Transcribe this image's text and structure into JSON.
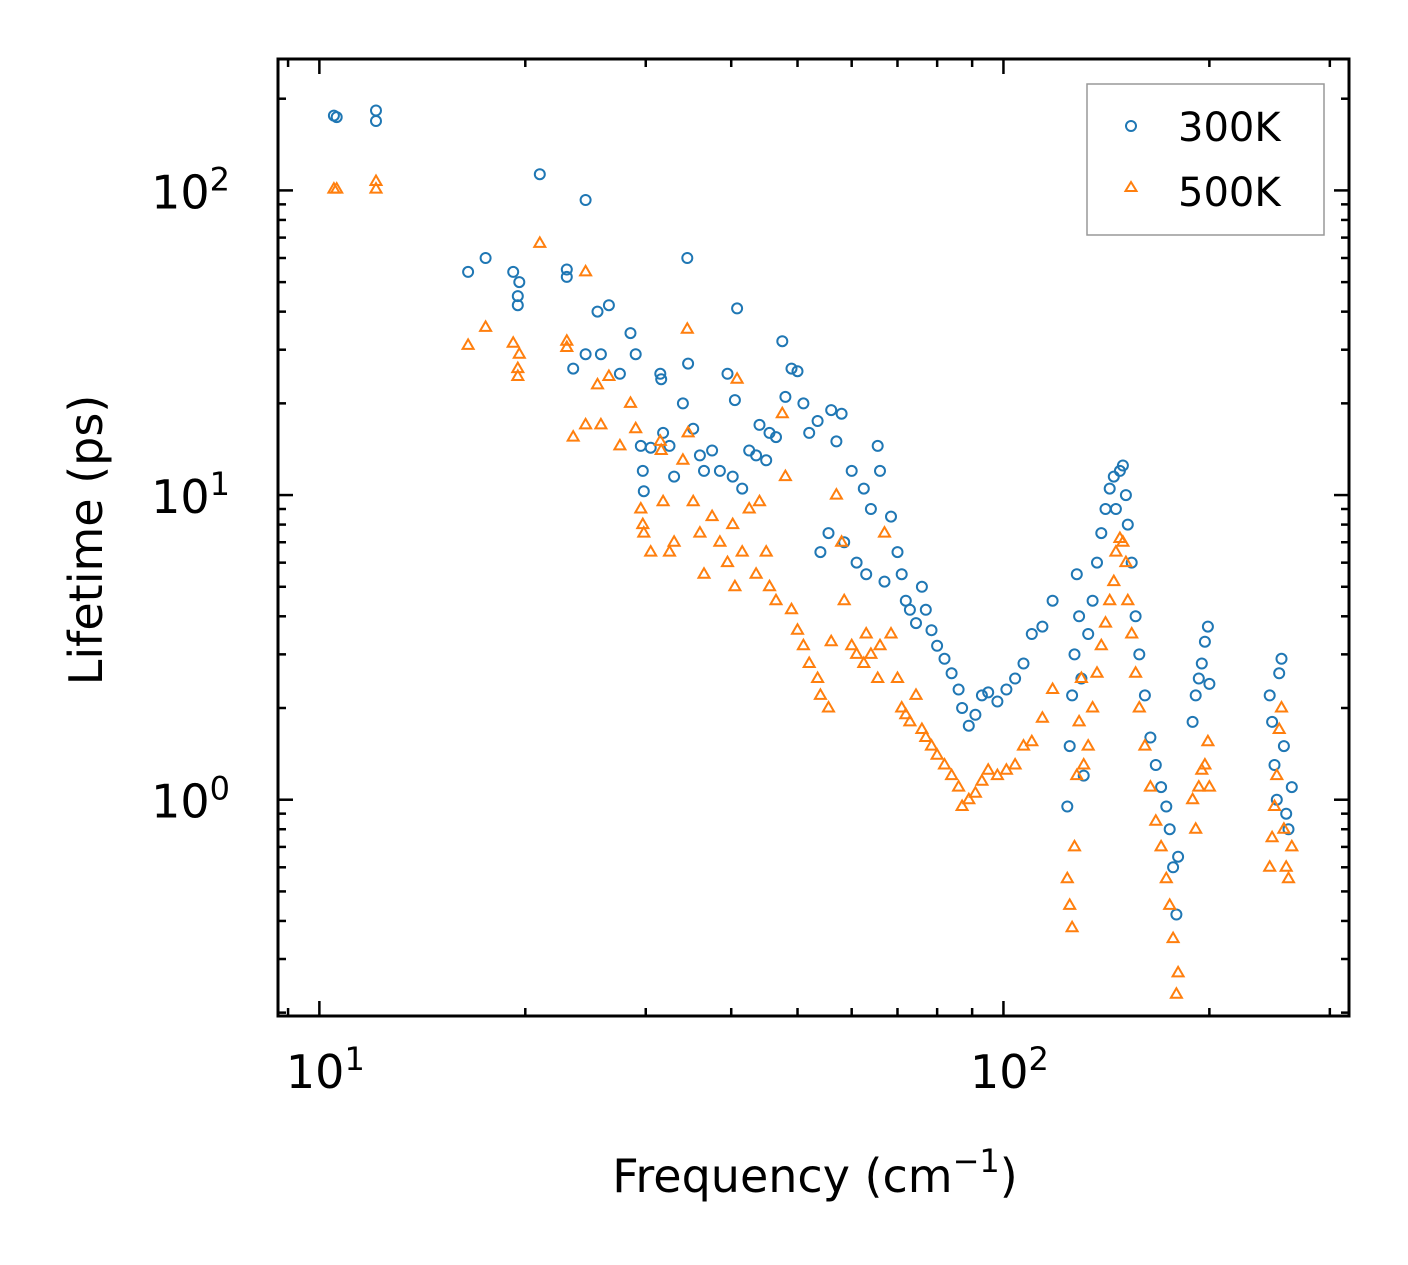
{
  "chart_data": {
    "type": "scatter",
    "xscale": "log",
    "yscale": "log",
    "xlim": [
      8.7,
      320
    ],
    "ylim": [
      0.195,
      270
    ],
    "xlabel": "Frequency (cm",
    "xlabel_sup": "−1",
    "xlabel_end": ")",
    "ylabel": "Lifetime (ps)",
    "xticks": [
      {
        "value": 10,
        "base": "10",
        "exp": "1"
      },
      {
        "value": 100,
        "base": "10",
        "exp": "2"
      }
    ],
    "yticks": [
      {
        "value": 1,
        "base": "10",
        "exp": "0"
      },
      {
        "value": 10,
        "base": "10",
        "exp": "1"
      },
      {
        "value": 100,
        "base": "10",
        "exp": "2"
      }
    ],
    "legend_position": "top-right",
    "series": [
      {
        "name": "300K",
        "marker": "circle",
        "color": "#1f77b4",
        "points": [
          [
            10.5,
            176
          ],
          [
            10.6,
            174
          ],
          [
            12.1,
            183
          ],
          [
            12.1,
            169
          ],
          [
            16.5,
            54
          ],
          [
            17.5,
            60
          ],
          [
            19.2,
            54
          ],
          [
            19.5,
            45
          ],
          [
            19.5,
            42
          ],
          [
            19.6,
            50
          ],
          [
            21.0,
            113
          ],
          [
            23.0,
            55
          ],
          [
            23.0,
            52
          ],
          [
            23.5,
            26
          ],
          [
            24.5,
            93
          ],
          [
            24.5,
            29
          ],
          [
            25.5,
            40
          ],
          [
            25.8,
            29
          ],
          [
            26.5,
            42
          ],
          [
            27.5,
            25
          ],
          [
            28.5,
            34
          ],
          [
            29.0,
            29
          ],
          [
            29.5,
            14.5
          ],
          [
            29.7,
            12
          ],
          [
            29.8,
            10.3
          ],
          [
            30.5,
            14.3
          ],
          [
            31.5,
            25
          ],
          [
            31.6,
            24
          ],
          [
            31.8,
            16
          ],
          [
            32.5,
            14.5
          ],
          [
            33.0,
            11.5
          ],
          [
            34.0,
            20
          ],
          [
            34.5,
            60
          ],
          [
            34.6,
            27
          ],
          [
            35.2,
            16.5
          ],
          [
            36.0,
            13.5
          ],
          [
            36.5,
            12
          ],
          [
            37.5,
            14
          ],
          [
            38.5,
            12
          ],
          [
            39.5,
            25
          ],
          [
            40.2,
            11.5
          ],
          [
            40.5,
            20.5
          ],
          [
            40.8,
            41
          ],
          [
            41.5,
            10.5
          ],
          [
            42.5,
            14
          ],
          [
            43.5,
            13.5
          ],
          [
            44.0,
            17
          ],
          [
            45.0,
            13
          ],
          [
            45.5,
            16
          ],
          [
            46.5,
            15.5
          ],
          [
            47.5,
            32
          ],
          [
            48.0,
            21
          ],
          [
            49.0,
            26
          ],
          [
            50.0,
            25.5
          ],
          [
            51.0,
            20
          ],
          [
            52.0,
            16
          ],
          [
            53.5,
            17.5
          ],
          [
            54.0,
            6.5
          ],
          [
            55.5,
            7.5
          ],
          [
            56.0,
            19
          ],
          [
            57.0,
            15
          ],
          [
            58.0,
            18.5
          ],
          [
            58.5,
            7
          ],
          [
            60.0,
            12
          ],
          [
            61.0,
            6
          ],
          [
            62.5,
            10.5
          ],
          [
            63.0,
            5.5
          ],
          [
            64.0,
            9
          ],
          [
            65.5,
            14.5
          ],
          [
            66.0,
            12
          ],
          [
            67.0,
            5.2
          ],
          [
            68.5,
            8.5
          ],
          [
            70.0,
            6.5
          ],
          [
            71.0,
            5.5
          ],
          [
            72.0,
            4.5
          ],
          [
            73.0,
            4.2
          ],
          [
            74.5,
            3.8
          ],
          [
            76.0,
            5.0
          ],
          [
            77.0,
            4.2
          ],
          [
            78.5,
            3.6
          ],
          [
            80.0,
            3.2
          ],
          [
            82.0,
            2.9
          ],
          [
            84.0,
            2.6
          ],
          [
            86.0,
            2.3
          ],
          [
            87.0,
            2.0
          ],
          [
            89.0,
            1.75
          ],
          [
            91.0,
            1.9
          ],
          [
            93.0,
            2.2
          ],
          [
            95.0,
            2.25
          ],
          [
            98.0,
            2.1
          ],
          [
            101.0,
            2.3
          ],
          [
            104.0,
            2.5
          ],
          [
            107.0,
            2.8
          ],
          [
            110.0,
            3.5
          ],
          [
            114.0,
            3.7
          ],
          [
            118.0,
            4.5
          ],
          [
            124.0,
            0.95
          ],
          [
            125.0,
            1.5
          ],
          [
            126.0,
            2.2
          ],
          [
            127.0,
            3.0
          ],
          [
            128.0,
            5.5
          ],
          [
            129.0,
            4.0
          ],
          [
            130.0,
            2.5
          ],
          [
            131.0,
            1.2
          ],
          [
            133.0,
            3.5
          ],
          [
            135.0,
            4.5
          ],
          [
            137.0,
            6.0
          ],
          [
            139.0,
            7.5
          ],
          [
            141.0,
            9.0
          ],
          [
            143.0,
            10.5
          ],
          [
            145.0,
            11.5
          ],
          [
            146.0,
            9.0
          ],
          [
            148.0,
            12.0
          ],
          [
            149.5,
            12.5
          ],
          [
            151.0,
            10.0
          ],
          [
            152.0,
            8.0
          ],
          [
            154.0,
            6.0
          ],
          [
            156.0,
            4.0
          ],
          [
            158.0,
            3.0
          ],
          [
            161.0,
            2.2
          ],
          [
            164.0,
            1.6
          ],
          [
            167.0,
            1.3
          ],
          [
            170.0,
            1.1
          ],
          [
            173.0,
            0.95
          ],
          [
            175.0,
            0.8
          ],
          [
            177.0,
            0.6
          ],
          [
            179.0,
            0.42
          ],
          [
            180.0,
            0.65
          ],
          [
            189.0,
            1.8
          ],
          [
            191.0,
            2.2
          ],
          [
            193.0,
            2.5
          ],
          [
            195.0,
            2.8
          ],
          [
            197.0,
            3.3
          ],
          [
            199.0,
            3.7
          ],
          [
            200.0,
            2.4
          ],
          [
            245.0,
            2.2
          ],
          [
            247.0,
            1.8
          ],
          [
            249.0,
            1.3
          ],
          [
            251.0,
            1.0
          ],
          [
            253.0,
            2.6
          ],
          [
            255.0,
            2.9
          ],
          [
            257.0,
            1.5
          ],
          [
            259.0,
            0.9
          ],
          [
            261.0,
            0.8
          ],
          [
            264.0,
            1.1
          ]
        ]
      },
      {
        "name": "500K",
        "marker": "triangle",
        "color": "#ff7f0e",
        "points": [
          [
            10.5,
            101
          ],
          [
            10.6,
            101
          ],
          [
            12.1,
            107
          ],
          [
            12.1,
            101
          ],
          [
            16.5,
            31
          ],
          [
            17.5,
            35.5
          ],
          [
            19.2,
            31.5
          ],
          [
            19.5,
            26
          ],
          [
            19.5,
            24.5
          ],
          [
            19.6,
            29
          ],
          [
            21.0,
            67
          ],
          [
            23.0,
            32
          ],
          [
            23.0,
            30.5
          ],
          [
            23.5,
            15.5
          ],
          [
            24.5,
            54
          ],
          [
            24.5,
            17
          ],
          [
            25.5,
            23
          ],
          [
            25.8,
            17
          ],
          [
            26.5,
            24.5
          ],
          [
            27.5,
            14.5
          ],
          [
            28.5,
            20
          ],
          [
            29.0,
            16.5
          ],
          [
            29.5,
            9
          ],
          [
            29.7,
            8
          ],
          [
            29.8,
            7.5
          ],
          [
            30.5,
            6.5
          ],
          [
            31.5,
            15
          ],
          [
            31.6,
            14
          ],
          [
            31.8,
            9.5
          ],
          [
            32.5,
            6.5
          ],
          [
            33.0,
            7
          ],
          [
            34.0,
            13
          ],
          [
            34.5,
            35
          ],
          [
            34.6,
            16
          ],
          [
            35.2,
            9.5
          ],
          [
            36.0,
            7.5
          ],
          [
            36.5,
            5.5
          ],
          [
            37.5,
            8.5
          ],
          [
            38.5,
            7
          ],
          [
            39.5,
            6
          ],
          [
            40.2,
            8
          ],
          [
            40.5,
            5
          ],
          [
            40.8,
            24
          ],
          [
            41.5,
            6.5
          ],
          [
            42.5,
            9
          ],
          [
            43.5,
            5.5
          ],
          [
            44.0,
            9.5
          ],
          [
            45.0,
            6.5
          ],
          [
            45.5,
            5
          ],
          [
            46.5,
            4.5
          ],
          [
            47.5,
            18.5
          ],
          [
            48.0,
            11.5
          ],
          [
            49.0,
            4.2
          ],
          [
            50.0,
            3.6
          ],
          [
            51.0,
            3.2
          ],
          [
            52.0,
            2.8
          ],
          [
            53.5,
            2.5
          ],
          [
            54.0,
            2.2
          ],
          [
            55.5,
            2.0
          ],
          [
            56.0,
            3.3
          ],
          [
            57.0,
            10
          ],
          [
            58.0,
            7
          ],
          [
            58.5,
            4.5
          ],
          [
            60.0,
            3.2
          ],
          [
            61.0,
            3.0
          ],
          [
            62.5,
            2.8
          ],
          [
            63.0,
            3.5
          ],
          [
            64.0,
            3.0
          ],
          [
            65.5,
            2.5
          ],
          [
            66.0,
            3.2
          ],
          [
            67.0,
            7.5
          ],
          [
            68.5,
            3.5
          ],
          [
            70.0,
            2.5
          ],
          [
            71.0,
            2.0
          ],
          [
            72.0,
            1.9
          ],
          [
            73.0,
            1.8
          ],
          [
            74.5,
            2.2
          ],
          [
            76.0,
            1.7
          ],
          [
            77.0,
            1.6
          ],
          [
            78.5,
            1.5
          ],
          [
            80.0,
            1.4
          ],
          [
            82.0,
            1.3
          ],
          [
            84.0,
            1.2
          ],
          [
            86.0,
            1.1
          ],
          [
            87.0,
            0.95
          ],
          [
            89.0,
            1.0
          ],
          [
            91.0,
            1.05
          ],
          [
            93.0,
            1.15
          ],
          [
            95.0,
            1.25
          ],
          [
            98.0,
            1.2
          ],
          [
            101.0,
            1.25
          ],
          [
            104.0,
            1.3
          ],
          [
            107.0,
            1.5
          ],
          [
            110.0,
            1.55
          ],
          [
            114.0,
            1.85
          ],
          [
            118.0,
            2.3
          ],
          [
            124.0,
            0.55
          ],
          [
            125.0,
            0.45
          ],
          [
            126.0,
            0.38
          ],
          [
            127.0,
            0.7
          ],
          [
            128.0,
            1.2
          ],
          [
            129.0,
            1.8
          ],
          [
            130.0,
            2.5
          ],
          [
            131.0,
            1.3
          ],
          [
            133.0,
            1.5
          ],
          [
            135.0,
            2.0
          ],
          [
            137.0,
            2.6
          ],
          [
            139.0,
            3.2
          ],
          [
            141.0,
            3.8
          ],
          [
            143.0,
            4.5
          ],
          [
            145.0,
            5.2
          ],
          [
            146.0,
            6.5
          ],
          [
            148.0,
            7.2
          ],
          [
            149.5,
            7.0
          ],
          [
            151.0,
            6.0
          ],
          [
            152.0,
            4.5
          ],
          [
            154.0,
            3.5
          ],
          [
            156.0,
            2.6
          ],
          [
            158.0,
            2.0
          ],
          [
            161.0,
            1.5
          ],
          [
            164.0,
            1.1
          ],
          [
            167.0,
            0.85
          ],
          [
            170.0,
            0.7
          ],
          [
            173.0,
            0.55
          ],
          [
            175.0,
            0.45
          ],
          [
            177.0,
            0.35
          ],
          [
            179.0,
            0.23
          ],
          [
            180.0,
            0.27
          ],
          [
            189.0,
            1.0
          ],
          [
            191.0,
            0.8
          ],
          [
            193.0,
            1.1
          ],
          [
            195.0,
            1.25
          ],
          [
            197.0,
            1.3
          ],
          [
            199.0,
            1.55
          ],
          [
            200.0,
            1.1
          ],
          [
            245.0,
            0.6
          ],
          [
            247.0,
            0.75
          ],
          [
            249.0,
            0.95
          ],
          [
            251.0,
            1.2
          ],
          [
            253.0,
            1.7
          ],
          [
            255.0,
            2.0
          ],
          [
            257.0,
            0.8
          ],
          [
            259.0,
            0.6
          ],
          [
            261.0,
            0.55
          ],
          [
            264.0,
            0.7
          ]
        ]
      }
    ]
  }
}
